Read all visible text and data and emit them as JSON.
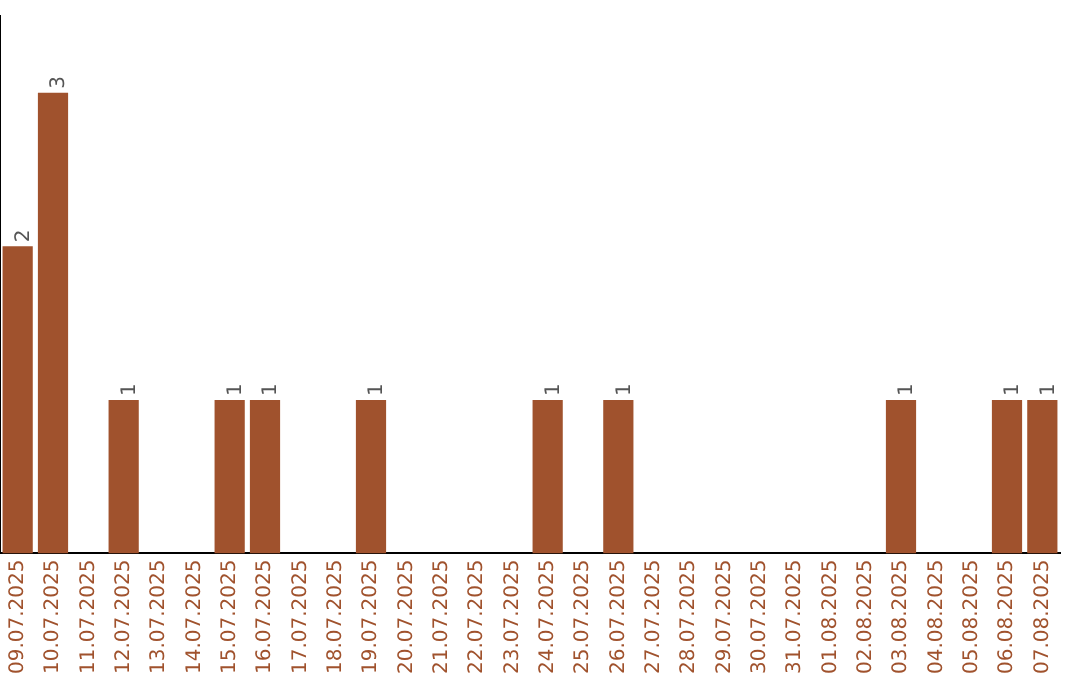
{
  "chart_data": {
    "type": "bar",
    "categories": [
      "09.07.2025",
      "10.07.2025",
      "11.07.2025",
      "12.07.2025",
      "13.07.2025",
      "14.07.2025",
      "15.07.2025",
      "16.07.2025",
      "17.07.2025",
      "18.07.2025",
      "19.07.2025",
      "20.07.2025",
      "21.07.2025",
      "22.07.2025",
      "23.07.2025",
      "24.07.2025",
      "25.07.2025",
      "26.07.2025",
      "27.07.2025",
      "28.07.2025",
      "29.07.2025",
      "30.07.2025",
      "31.07.2025",
      "01.08.2025",
      "02.08.2025",
      "03.08.2025",
      "04.08.2025",
      "05.08.2025",
      "06.08.2025",
      "07.08.2025"
    ],
    "values": [
      2,
      3,
      0,
      1,
      0,
      0,
      1,
      1,
      0,
      0,
      1,
      0,
      0,
      0,
      0,
      1,
      0,
      1,
      0,
      0,
      0,
      0,
      0,
      0,
      0,
      1,
      0,
      0,
      1,
      1
    ],
    "value_labels": [
      "2",
      "3",
      null,
      "1",
      null,
      null,
      "1",
      "1",
      null,
      null,
      "1",
      null,
      null,
      null,
      null,
      "1",
      null,
      "1",
      null,
      null,
      null,
      null,
      null,
      null,
      null,
      "1",
      null,
      null,
      "1",
      "1"
    ],
    "color": "#a0522d",
    "grid": false,
    "legend": false,
    "tick_labels": "x"
  }
}
